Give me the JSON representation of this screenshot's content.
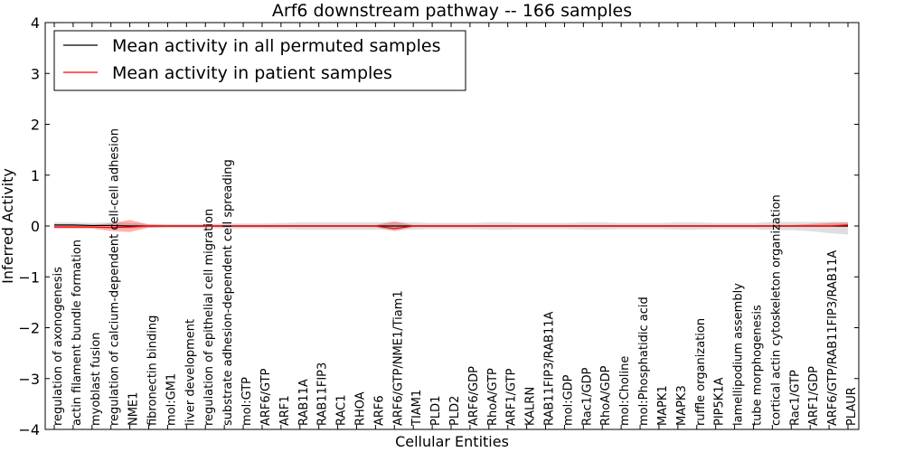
{
  "chart_data": {
    "type": "line",
    "title": "Arf6 downstream pathway -- 166 samples",
    "xlabel": "Cellular Entities",
    "ylabel": "Inferred Activity",
    "ylim": [
      -4,
      4
    ],
    "yticks": [
      -4,
      -3,
      -2,
      -1,
      0,
      1,
      2,
      3,
      4
    ],
    "ytick_labels": [
      "−4",
      "−3",
      "−2",
      "−1",
      "0",
      "1",
      "2",
      "3",
      "4"
    ],
    "categories": [
      "regulation of axonogenesis",
      "actin filament bundle formation",
      "myoblast fusion",
      "regulation of calcium-dependent cell-cell adhesion",
      "NME1",
      "fibronectin binding",
      "mol:GM1",
      "liver development",
      "regulation of epithelial cell migration",
      "substrate adhesion-dependent cell spreading",
      "mol:GTP",
      "ARF6/GTP",
      "ARF1",
      "RAB11A",
      "RAB11FIP3",
      "RAC1",
      "RHOA",
      "ARF6",
      "ARF6/GTP/NME1/Tiam1",
      "TIAM1",
      "PLD1",
      "PLD2",
      "ARF6/GDP",
      "RhoA/GTP",
      "ARF1/GTP",
      "KALRN",
      "RAB11FIP3/RAB11A",
      "mol:GDP",
      "Rac1/GDP",
      "RhoA/GDP",
      "mol:Choline",
      "mol:Phosphatidic acid",
      "MAPK1",
      "MAPK3",
      "ruffle organization",
      "PIP5K1A",
      "lamellipodium assembly",
      "tube morphogenesis",
      "cortical actin cytoskeleton organization",
      "Rac1/GTP",
      "ARF1/GDP",
      "ARF6/GTP/RAB11FIP3/RAB11A",
      "PLAUR"
    ],
    "series": [
      {
        "name": "Mean activity in all permuted samples",
        "color": "#000000",
        "values": [
          0.02,
          0.02,
          0.01,
          0.01,
          0.0,
          0.0,
          0.0,
          0.0,
          0.0,
          0.0,
          0.0,
          0.0,
          0.0,
          0.0,
          0.0,
          0.0,
          0.0,
          0.0,
          0.0,
          0.0,
          0.0,
          0.0,
          0.0,
          0.0,
          0.0,
          0.0,
          0.0,
          0.0,
          0.0,
          0.0,
          0.0,
          0.0,
          0.0,
          0.0,
          0.0,
          0.0,
          0.0,
          0.0,
          0.0,
          0.0,
          0.0,
          0.0,
          0.0
        ],
        "band_lower": [
          -0.03,
          -0.03,
          -0.04,
          -0.05,
          -0.05,
          -0.04,
          -0.04,
          -0.04,
          -0.04,
          -0.05,
          -0.05,
          -0.05,
          -0.06,
          -0.07,
          -0.07,
          -0.07,
          -0.07,
          -0.07,
          -0.08,
          -0.07,
          -0.06,
          -0.06,
          -0.06,
          -0.07,
          -0.07,
          -0.06,
          -0.06,
          -0.06,
          -0.07,
          -0.07,
          -0.06,
          -0.06,
          -0.06,
          -0.07,
          -0.07,
          -0.06,
          -0.06,
          -0.06,
          -0.08,
          -0.08,
          -0.1,
          -0.14,
          -0.17
        ],
        "band_upper": [
          0.07,
          0.07,
          0.06,
          0.07,
          0.06,
          0.04,
          0.04,
          0.04,
          0.04,
          0.05,
          0.05,
          0.05,
          0.06,
          0.07,
          0.07,
          0.07,
          0.07,
          0.07,
          0.08,
          0.07,
          0.06,
          0.06,
          0.06,
          0.07,
          0.07,
          0.06,
          0.06,
          0.06,
          0.07,
          0.07,
          0.06,
          0.06,
          0.06,
          0.07,
          0.07,
          0.06,
          0.06,
          0.06,
          0.08,
          0.08,
          0.08,
          0.08,
          0.08
        ]
      },
      {
        "name": "Mean activity in patient samples",
        "color": "#ff0000",
        "values": [
          -0.02,
          -0.02,
          -0.02,
          -0.03,
          -0.02,
          0.0,
          0.0,
          0.0,
          0.0,
          0.0,
          0.0,
          0.0,
          0.0,
          0.0,
          0.0,
          0.0,
          0.0,
          0.0,
          -0.05,
          0.0,
          0.0,
          0.0,
          0.0,
          0.0,
          0.0,
          0.0,
          0.0,
          0.0,
          0.0,
          0.0,
          0.0,
          0.0,
          0.0,
          0.0,
          0.0,
          0.0,
          0.0,
          0.0,
          0.0,
          0.0,
          0.0,
          0.0,
          0.02
        ],
        "band_lower": [
          -0.05,
          -0.05,
          -0.05,
          -0.1,
          -0.12,
          -0.03,
          -0.02,
          -0.02,
          -0.02,
          -0.02,
          -0.02,
          -0.02,
          -0.02,
          -0.02,
          -0.02,
          -0.02,
          -0.02,
          -0.02,
          -0.1,
          -0.02,
          -0.02,
          -0.02,
          -0.02,
          -0.02,
          -0.02,
          -0.02,
          -0.02,
          -0.02,
          -0.02,
          -0.02,
          -0.02,
          -0.02,
          -0.02,
          -0.02,
          -0.02,
          -0.02,
          -0.02,
          -0.02,
          -0.02,
          -0.02,
          -0.02,
          -0.02,
          -0.02
        ],
        "band_upper": [
          0.02,
          0.02,
          0.02,
          0.05,
          0.12,
          0.03,
          0.02,
          0.02,
          0.02,
          0.02,
          0.02,
          0.02,
          0.02,
          0.02,
          0.02,
          0.02,
          0.02,
          0.02,
          0.09,
          0.02,
          0.02,
          0.02,
          0.02,
          0.02,
          0.02,
          0.02,
          0.02,
          0.02,
          0.02,
          0.02,
          0.02,
          0.02,
          0.02,
          0.02,
          0.02,
          0.02,
          0.02,
          0.02,
          0.02,
          0.02,
          0.04,
          0.06,
          0.07
        ]
      }
    ],
    "legend": {
      "position": "top-left",
      "entries": [
        "Mean activity in all permuted samples",
        "Mean activity in patient samples"
      ]
    },
    "colors": {
      "permuted_band": "#c8c8c8",
      "patient_band": "#ff0000"
    }
  }
}
